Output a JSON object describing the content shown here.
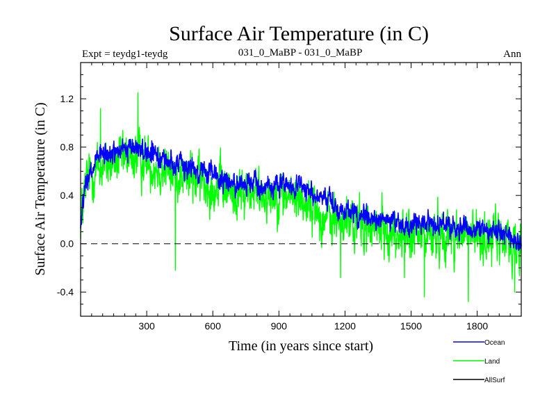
{
  "chart_data": {
    "type": "line",
    "title": "Surface Air Temperature (in C)",
    "subtitle_left": "Expt = teydg1-teydg",
    "subtitle_center": "031_0_MaBP - 031_0_MaBP",
    "subtitle_right": "Ann",
    "xlabel": "Time (in years since start)",
    "ylabel": "Surface Air Temperature (in C)",
    "xlim": [
      0,
      2000
    ],
    "ylim": [
      -0.6,
      1.5
    ],
    "xticks": [
      300,
      600,
      900,
      1200,
      1500,
      1800
    ],
    "xtick_labels": [
      "300",
      "600",
      "900",
      "1200",
      "1500",
      "1800"
    ],
    "yticks": [
      -0.4,
      0.0,
      0.4,
      0.8,
      1.2
    ],
    "ytick_labels": [
      "-0.4",
      "0.0",
      "0.4",
      "0.8",
      "1.2"
    ],
    "reference_line": 0.0,
    "series": [
      {
        "name": "Land",
        "color": "#00ff00",
        "trend_x": [
          0,
          30,
          100,
          250,
          400,
          550,
          700,
          850,
          1000,
          1100,
          1200,
          1350,
          1500,
          1600,
          1700,
          1800,
          1900,
          2000
        ],
        "trend_y": [
          0.2,
          0.55,
          0.65,
          0.72,
          0.6,
          0.52,
          0.42,
          0.42,
          0.38,
          0.22,
          0.18,
          0.12,
          0.05,
          0.08,
          0.07,
          0.06,
          0.05,
          -0.05
        ],
        "noise_amplitude": 0.17,
        "peaks": [
          [
            260,
            1.25
          ],
          [
            90,
            1.12
          ],
          [
            430,
            -0.22
          ],
          [
            1180,
            -0.28
          ],
          [
            1470,
            -0.28
          ],
          [
            1560,
            -0.44
          ],
          [
            1760,
            -0.48
          ],
          [
            1970,
            -0.4
          ]
        ]
      },
      {
        "name": "Ocean",
        "color": "#0000ff",
        "trend_x": [
          0,
          20,
          80,
          250,
          400,
          550,
          700,
          850,
          1000,
          1100,
          1200,
          1350,
          1500,
          1600,
          1700,
          1800,
          1900,
          2000
        ],
        "trend_y": [
          0.15,
          0.45,
          0.72,
          0.8,
          0.68,
          0.6,
          0.5,
          0.48,
          0.48,
          0.35,
          0.28,
          0.2,
          0.15,
          0.16,
          0.14,
          0.12,
          0.11,
          0.0
        ],
        "noise_amplitude": 0.075
      }
    ],
    "legend": [
      {
        "label": "Ocean",
        "color": "#0000ff"
      },
      {
        "label": "Land",
        "color": "#00ff00"
      },
      {
        "label": "AllSurf",
        "color": "#000000"
      }
    ],
    "legend_position": "bottom-right"
  }
}
